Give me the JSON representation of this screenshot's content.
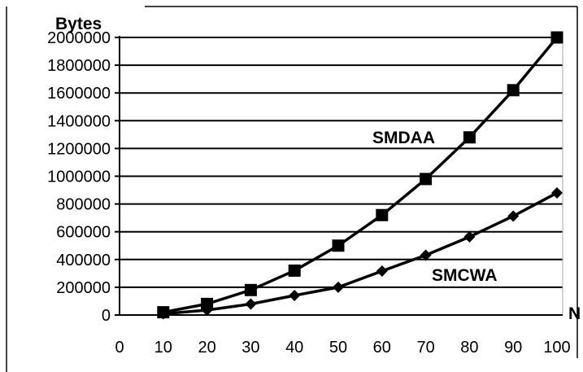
{
  "chart_data": {
    "type": "line",
    "ylabel": "Bytes",
    "xlabel": "N",
    "x": [
      10,
      20,
      30,
      40,
      50,
      60,
      70,
      80,
      90,
      100
    ],
    "x_ticks": [
      "0",
      "10",
      "20",
      "30",
      "40",
      "50",
      "60",
      "70",
      "80",
      "90",
      "100"
    ],
    "y_ticks": [
      "0",
      "200000",
      "400000",
      "600000",
      "800000",
      "1000000",
      "1200000",
      "1400000",
      "1600000",
      "1800000",
      "2000000"
    ],
    "xlim": [
      0,
      100
    ],
    "ylim": [
      0,
      2000000
    ],
    "grid": "horizontal",
    "series": [
      {
        "name": "SMDAA",
        "marker": "square",
        "values": [
          20000,
          80000,
          180000,
          320000,
          500000,
          720000,
          980000,
          1280000,
          1620000,
          2000000
        ]
      },
      {
        "name": "SMCWA",
        "marker": "diamond",
        "values": [
          8800,
          35200,
          79200,
          140800,
          200000,
          316800,
          431200,
          563200,
          712800,
          880000
        ]
      }
    ],
    "colors": {
      "line": "#000000",
      "grid": "#000000",
      "background": "#ffffff"
    }
  }
}
